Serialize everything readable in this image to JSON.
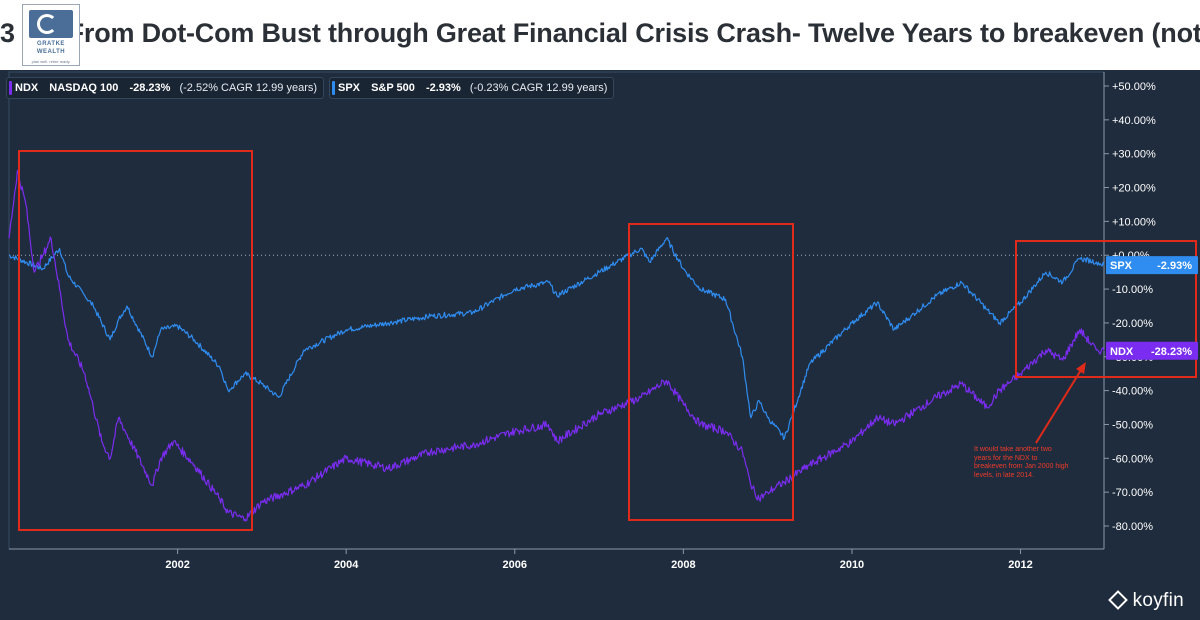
{
  "header": {
    "title": "3  I 2: From Dot-Com Bust through Great Financial Crisis Crash- Twelve Years to breakeven (not",
    "logo": {
      "name": "GRATKE",
      "name2": "WEALTH",
      "tagline": "plan well. retire ready."
    }
  },
  "brand": "koyfin",
  "legend": [
    {
      "ticker": "NDX",
      "name": "NASDAQ 100",
      "change": "-28.23%",
      "cagr": "(-2.52% CAGR 12.99 years)",
      "color": "#7a2cf0"
    },
    {
      "ticker": "SPX",
      "name": "S&P 500",
      "change": "-2.93%",
      "cagr": "(-0.23% CAGR 12.99 years)",
      "color": "#2f8cf0"
    }
  ],
  "annotation": "It would take another two years for the NDX to breakeven from Jan 2000 high levels, in late 2014.",
  "chart_data": {
    "type": "line",
    "y_unit": "percent change",
    "ylim": [
      -85,
      55
    ],
    "xlim": [
      2000.0,
      2012.99
    ],
    "x_ticks": [
      2002,
      2004,
      2006,
      2008,
      2010,
      2012
    ],
    "y_ticks": [
      "+50.00%",
      "+40.00%",
      "+30.00%",
      "+20.00%",
      "+10.00%",
      "+0.00%",
      "-10.00%",
      "-20.00%",
      "-30.00%",
      "-40.00%",
      "-50.00%",
      "-60.00%",
      "-70.00%",
      "-80.00%"
    ],
    "y_tick_values": [
      50,
      40,
      30,
      20,
      10,
      0,
      -10,
      -20,
      -30,
      -40,
      -50,
      -60,
      -70,
      -80
    ],
    "series": [
      {
        "name": "SPX",
        "color": "#2f8cf0",
        "end_label": "SPX",
        "end_value": "-2.93%",
        "x": [
          2000.0,
          2000.2,
          2000.4,
          2000.6,
          2000.7,
          2000.9,
          2001.0,
          2001.2,
          2001.3,
          2001.4,
          2001.7,
          2001.8,
          2002.0,
          2002.2,
          2002.5,
          2002.6,
          2002.8,
          2003.0,
          2003.2,
          2003.5,
          2004.0,
          2004.5,
          2005.0,
          2005.5,
          2006.0,
          2006.4,
          2006.5,
          2007.0,
          2007.5,
          2007.6,
          2007.8,
          2008.0,
          2008.2,
          2008.5,
          2008.7,
          2008.8,
          2008.9,
          2009.0,
          2009.2,
          2009.5,
          2010.0,
          2010.3,
          2010.5,
          2010.7,
          2011.0,
          2011.3,
          2011.6,
          2011.75,
          2012.0,
          2012.3,
          2012.5,
          2012.7,
          2012.9,
          2012.99
        ],
        "y": [
          0,
          -2,
          -4,
          2,
          -6,
          -12,
          -15,
          -25,
          -19,
          -15,
          -30,
          -22,
          -21,
          -25,
          -33,
          -40,
          -35,
          -38,
          -42,
          -28,
          -22,
          -20,
          -18,
          -17,
          -10,
          -8,
          -12,
          -5,
          2,
          -2,
          5,
          -4,
          -10,
          -13,
          -30,
          -48,
          -43,
          -48,
          -54,
          -32,
          -20,
          -14,
          -22,
          -18,
          -12,
          -8,
          -16,
          -20,
          -14,
          -5,
          -8,
          -1,
          -2,
          -2.93
        ]
      },
      {
        "name": "NDX",
        "color": "#7a2cf0",
        "end_label": "NDX",
        "end_value": "-28.23%",
        "x": [
          2000.0,
          2000.1,
          2000.2,
          2000.3,
          2000.4,
          2000.5,
          2000.6,
          2000.7,
          2000.9,
          2001.0,
          2001.1,
          2001.2,
          2001.3,
          2001.5,
          2001.7,
          2001.8,
          2001.95,
          2002.2,
          2002.5,
          2002.6,
          2002.8,
          2003.0,
          2003.5,
          2004.0,
          2004.5,
          2005.0,
          2005.5,
          2006.0,
          2006.4,
          2006.5,
          2007.0,
          2007.5,
          2007.8,
          2008.0,
          2008.2,
          2008.5,
          2008.7,
          2008.8,
          2008.9,
          2009.0,
          2009.2,
          2009.5,
          2010.0,
          2010.3,
          2010.5,
          2011.0,
          2011.3,
          2011.6,
          2011.75,
          2012.0,
          2012.3,
          2012.5,
          2012.7,
          2012.9,
          2012.99
        ],
        "y": [
          5,
          25,
          15,
          -5,
          0,
          5,
          -10,
          -25,
          -35,
          -45,
          -55,
          -60,
          -48,
          -58,
          -68,
          -60,
          -55,
          -62,
          -72,
          -76,
          -78,
          -73,
          -68,
          -60,
          -63,
          -58,
          -56,
          -52,
          -50,
          -55,
          -47,
          -42,
          -37,
          -44,
          -50,
          -52,
          -58,
          -68,
          -72,
          -70,
          -67,
          -62,
          -55,
          -48,
          -50,
          -42,
          -38,
          -45,
          -40,
          -35,
          -28,
          -31,
          -22,
          -28,
          -28.23
        ]
      }
    ]
  }
}
